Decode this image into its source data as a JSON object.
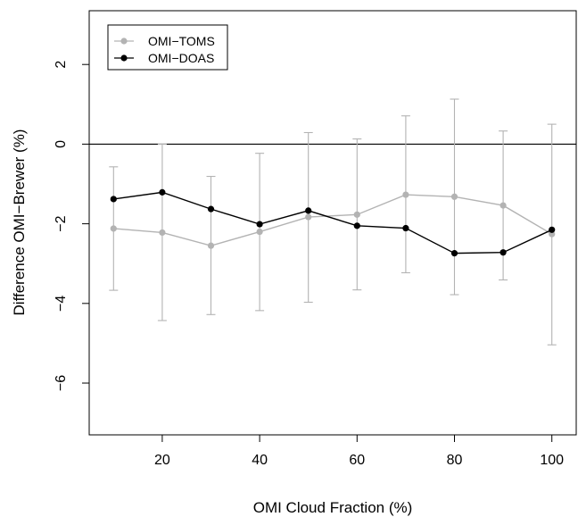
{
  "chart_data": {
    "type": "line",
    "xlabel": "OMI Cloud Fraction (%)",
    "ylabel": "Difference OMI−Brewer (%)",
    "xlim": [
      5,
      105
    ],
    "ylim": [
      -7.3,
      3.35
    ],
    "x_ticks": [
      20,
      40,
      60,
      80,
      100
    ],
    "x_tick_labels": [
      "20",
      "40",
      "60",
      "80",
      "100"
    ],
    "y_ticks": [
      -6,
      -4,
      -2,
      0,
      2
    ],
    "y_tick_labels": [
      "−6",
      "−4",
      "−2",
      "0",
      "2"
    ],
    "reference_line": 0,
    "grid": false,
    "legend_position": "top-left",
    "x": [
      10,
      20,
      30,
      40,
      50,
      60,
      70,
      80,
      90,
      100
    ],
    "series": [
      {
        "name": "OMI−TOMS",
        "color": "#b3b3b3",
        "values": [
          -2.12,
          -2.22,
          -2.55,
          -2.2,
          -1.83,
          -1.77,
          -1.27,
          -1.32,
          -1.54,
          -2.26
        ],
        "error_low": [
          -3.67,
          -4.43,
          -4.28,
          -4.18,
          -3.97,
          -3.66,
          -3.23,
          -3.78,
          -3.41,
          -5.04
        ],
        "error_high": [
          -0.57,
          0.0,
          -0.81,
          -0.23,
          0.29,
          0.13,
          0.71,
          1.13,
          0.33,
          0.5
        ]
      },
      {
        "name": "OMI−DOAS",
        "color": "#000000",
        "values": [
          -1.38,
          -1.21,
          -1.63,
          -2.01,
          -1.67,
          -2.05,
          -2.11,
          -2.74,
          -2.72,
          -2.15
        ]
      }
    ]
  }
}
